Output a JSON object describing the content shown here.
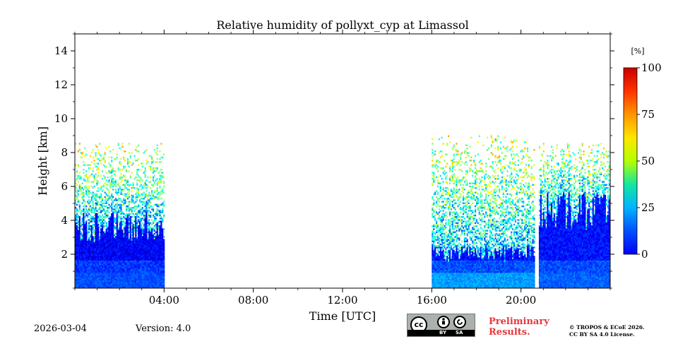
{
  "chart_data": {
    "type": "heatmap",
    "title": "Relative humidity of pollyxt_cyp at Limassol",
    "xlabel": "Time [UTC]",
    "ylabel": "Height [km]",
    "xlim_hours": [
      0,
      24
    ],
    "ylim_km": [
      0,
      15
    ],
    "xticks": [
      {
        "hour": 4,
        "label": "04:00"
      },
      {
        "hour": 8,
        "label": "08:00"
      },
      {
        "hour": 12,
        "label": "12:00"
      },
      {
        "hour": 16,
        "label": "16:00"
      },
      {
        "hour": 20,
        "label": "20:00"
      }
    ],
    "yticks": [
      {
        "km": 2,
        "label": "2"
      },
      {
        "km": 4,
        "label": "4"
      },
      {
        "km": 6,
        "label": "6"
      },
      {
        "km": 8,
        "label": "8"
      },
      {
        "km": 10,
        "label": "10"
      },
      {
        "km": 12,
        "label": "12"
      },
      {
        "km": 14,
        "label": "14"
      }
    ],
    "colorbar": {
      "unit": "[%]",
      "range": [
        0,
        100
      ],
      "ticks": [
        {
          "value": 0,
          "label": "0"
        },
        {
          "value": 25,
          "label": "25"
        },
        {
          "value": 50,
          "label": "50"
        },
        {
          "value": 75,
          "label": "75"
        },
        {
          "value": 100,
          "label": "100"
        }
      ],
      "colormap": "jet"
    },
    "data_segments": [
      {
        "start_hour": 0.0,
        "end_hour": 4.0,
        "rh_surface_pct": 20,
        "rh_mid_pct": 10,
        "layer_top_km": 3.6,
        "noisy_top_km": 8.5
      },
      {
        "start_hour": 16.0,
        "end_hour": 20.6,
        "rh_surface_pct": 28,
        "rh_mid_pct": 12,
        "layer_top_km": 2.0,
        "noisy_top_km": 9.0
      },
      {
        "start_hour": 20.8,
        "end_hour": 24.0,
        "rh_surface_pct": 22,
        "rh_mid_pct": 12,
        "layer_top_km": 4.5,
        "noisy_top_km": 8.5
      }
    ]
  },
  "footer": {
    "date": "2026-03-04",
    "version": "Version: 4.0",
    "preliminary_line1": "Preliminary",
    "preliminary_line2": "Results.",
    "copyright_line1": "© TROPOS & ECoE 2026.",
    "copyright_line2": "CC BY SA 4.0 License.",
    "license_badge": {
      "cc": "cc",
      "by": "BY",
      "sa": "SA"
    }
  },
  "colors": {
    "axis": "#000000",
    "preliminary": "#e8383d"
  }
}
